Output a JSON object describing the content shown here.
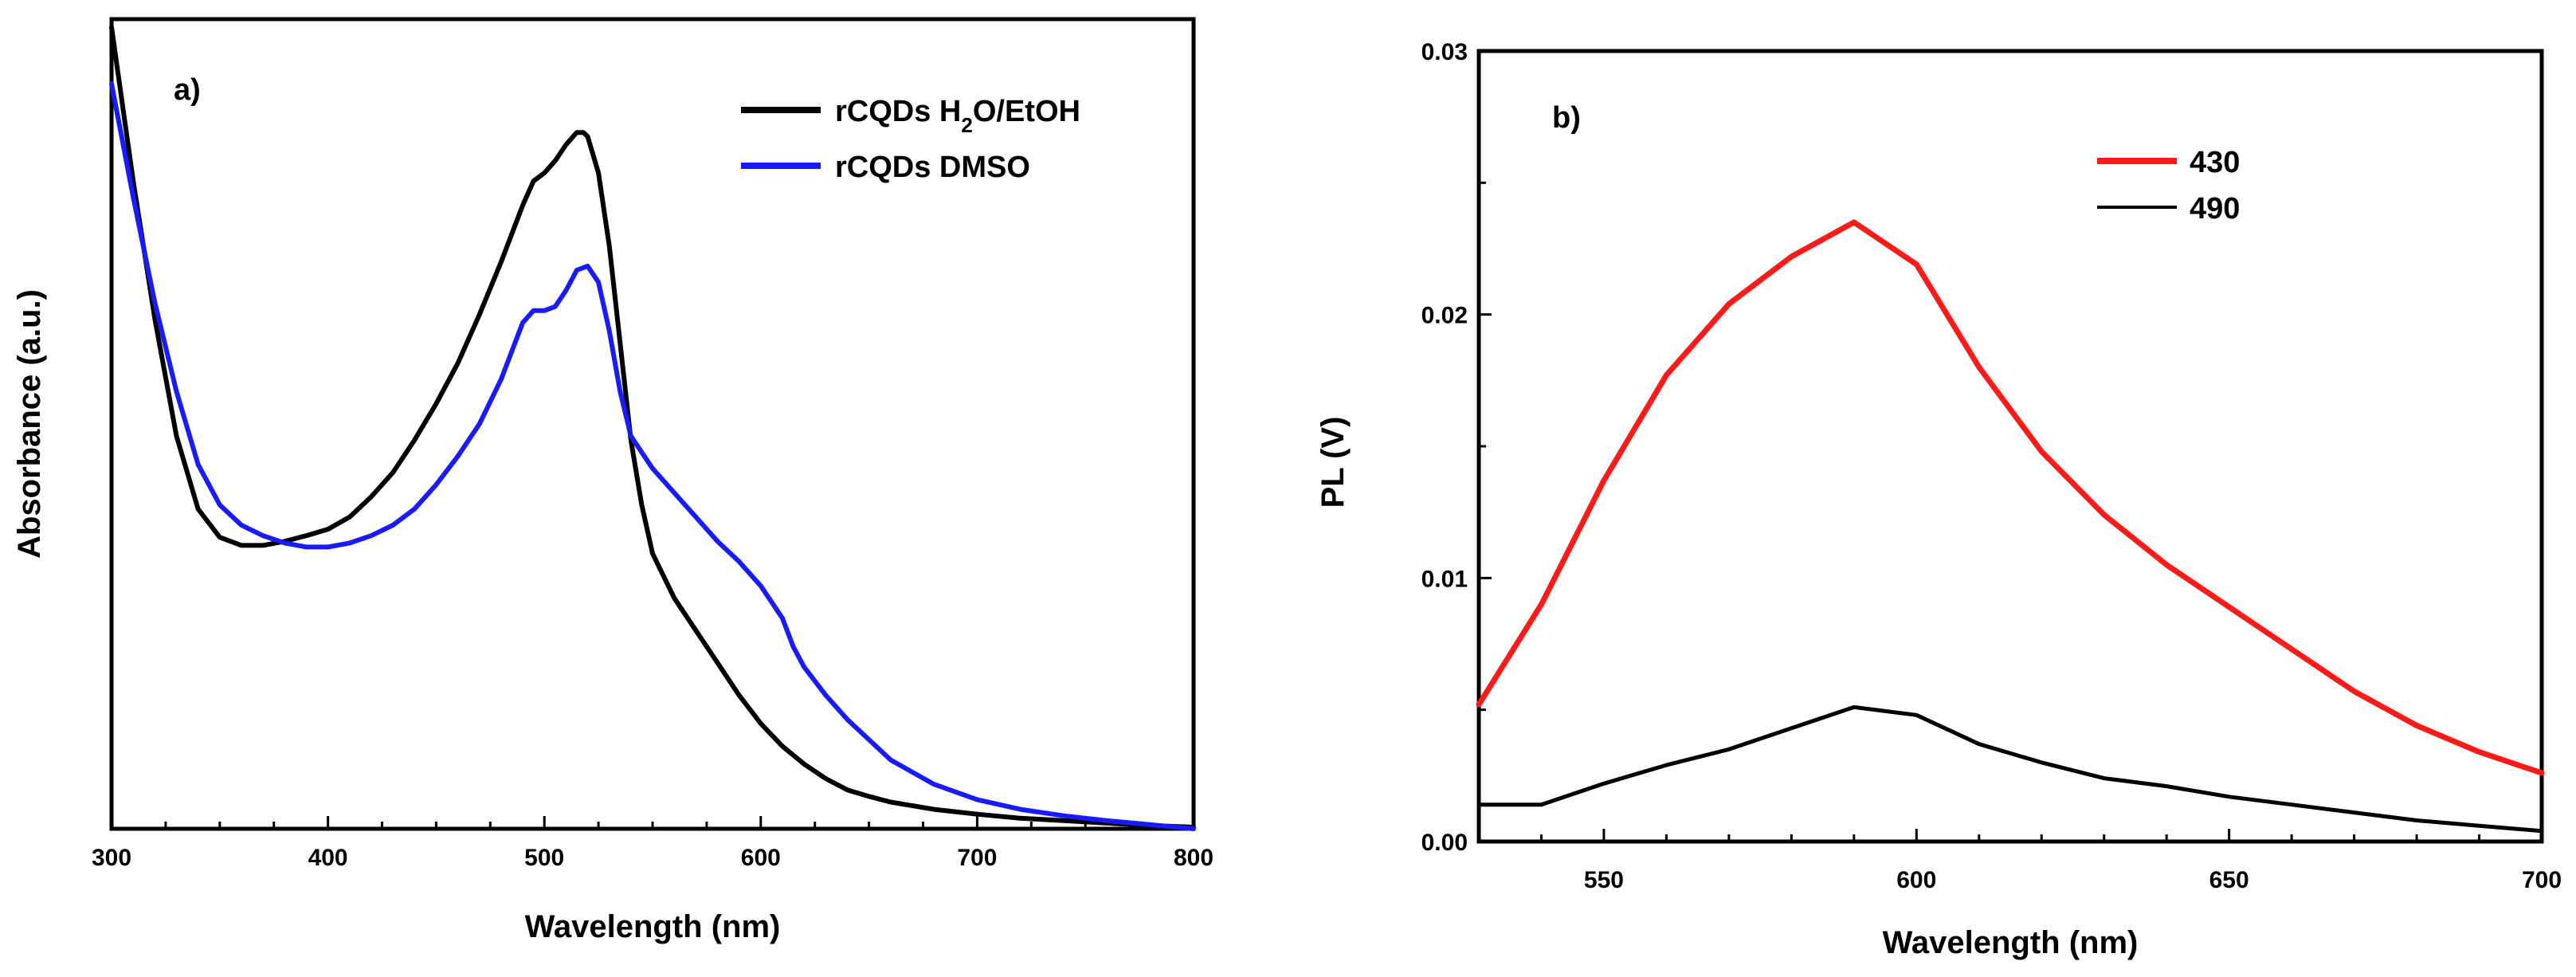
{
  "chart_data": [
    {
      "type": "line",
      "panel_label": "a)",
      "xlabel": "Wavelength (nm)",
      "ylabel": "Absorbance (a.u.)",
      "xlim": [
        300,
        800
      ],
      "ylim": [
        0,
        1
      ],
      "x_ticks": [
        300,
        400,
        500,
        600,
        700,
        800
      ],
      "y_tick_labels_shown": false,
      "legend_position": "top-right",
      "series": [
        {
          "name": "rCQDs H2O/EtOH",
          "legend_main": "rCQDs H",
          "legend_sub": "2",
          "legend_rest": "O/EtOH",
          "color": "#000000",
          "x": [
            300,
            310,
            320,
            330,
            340,
            350,
            360,
            370,
            380,
            390,
            400,
            410,
            420,
            430,
            440,
            450,
            460,
            470,
            480,
            490,
            495,
            500,
            505,
            510,
            515,
            518,
            520,
            525,
            530,
            535,
            540,
            545,
            550,
            560,
            570,
            580,
            590,
            600,
            610,
            620,
            630,
            640,
            650,
            660,
            680,
            700,
            720,
            740,
            760,
            780,
            800
          ],
          "y": [
            0.99,
            0.8,
            0.63,
            0.485,
            0.395,
            0.36,
            0.35,
            0.35,
            0.355,
            0.362,
            0.37,
            0.385,
            0.41,
            0.44,
            0.48,
            0.525,
            0.575,
            0.635,
            0.7,
            0.77,
            0.8,
            0.81,
            0.825,
            0.845,
            0.86,
            0.86,
            0.855,
            0.81,
            0.72,
            0.6,
            0.48,
            0.4,
            0.34,
            0.285,
            0.245,
            0.205,
            0.165,
            0.13,
            0.102,
            0.08,
            0.062,
            0.048,
            0.04,
            0.033,
            0.024,
            0.018,
            0.013,
            0.01,
            0.007,
            0.004,
            0.002
          ]
        },
        {
          "name": "rCQDs DMSO",
          "legend_main": "rCQDs DMSO",
          "color": "#1a1aff",
          "x": [
            300,
            310,
            320,
            330,
            340,
            350,
            360,
            370,
            380,
            390,
            400,
            410,
            420,
            430,
            440,
            450,
            460,
            470,
            480,
            490,
            495,
            500,
            505,
            510,
            515,
            520,
            525,
            530,
            535,
            540,
            550,
            560,
            570,
            580,
            590,
            600,
            610,
            615,
            620,
            630,
            640,
            660,
            680,
            700,
            720,
            740,
            760,
            780,
            800
          ],
          "y": [
            0.92,
            0.78,
            0.65,
            0.54,
            0.45,
            0.4,
            0.375,
            0.362,
            0.353,
            0.348,
            0.348,
            0.353,
            0.362,
            0.375,
            0.395,
            0.425,
            0.46,
            0.5,
            0.555,
            0.625,
            0.64,
            0.64,
            0.645,
            0.665,
            0.69,
            0.695,
            0.675,
            0.615,
            0.54,
            0.485,
            0.445,
            0.415,
            0.385,
            0.355,
            0.33,
            0.3,
            0.26,
            0.225,
            0.2,
            0.165,
            0.135,
            0.085,
            0.055,
            0.036,
            0.024,
            0.016,
            0.01,
            0.005,
            0.0
          ]
        }
      ]
    },
    {
      "type": "line",
      "panel_label": "b)",
      "xlabel": "Wavelength (nm)",
      "ylabel": "PL (V)",
      "xlim": [
        530,
        700
      ],
      "ylim": [
        0,
        0.03
      ],
      "x_ticks": [
        550,
        600,
        650,
        700
      ],
      "x_tick_labels": [
        "550",
        "600",
        "650",
        "700"
      ],
      "y_ticks": [
        0,
        0.01,
        0.02,
        0.03
      ],
      "y_tick_labels": [
        "0.00",
        "0.01",
        "0.02",
        "0.03"
      ],
      "legend_position": "top-center",
      "series": [
        {
          "name": "430",
          "color": "#ff1a1a",
          "x": [
            530,
            540,
            550,
            560,
            570,
            580,
            590,
            600,
            610,
            620,
            630,
            640,
            650,
            660,
            670,
            680,
            690,
            700
          ],
          "y": [
            0.0052,
            0.009,
            0.0137,
            0.0177,
            0.0204,
            0.0222,
            0.0235,
            0.0219,
            0.018,
            0.0148,
            0.0124,
            0.0105,
            0.0089,
            0.0073,
            0.0057,
            0.0044,
            0.0034,
            0.0026
          ]
        },
        {
          "name": "490",
          "color": "#000000",
          "x": [
            530,
            540,
            550,
            560,
            570,
            580,
            590,
            600,
            610,
            620,
            630,
            640,
            650,
            660,
            670,
            680,
            690,
            700
          ],
          "y": [
            0.0014,
            0.0014,
            0.0022,
            0.0029,
            0.0035,
            0.0043,
            0.0051,
            0.0048,
            0.0037,
            0.003,
            0.0024,
            0.0021,
            0.0017,
            0.0014,
            0.0011,
            0.0008,
            0.0006,
            0.0004
          ]
        }
      ]
    }
  ]
}
